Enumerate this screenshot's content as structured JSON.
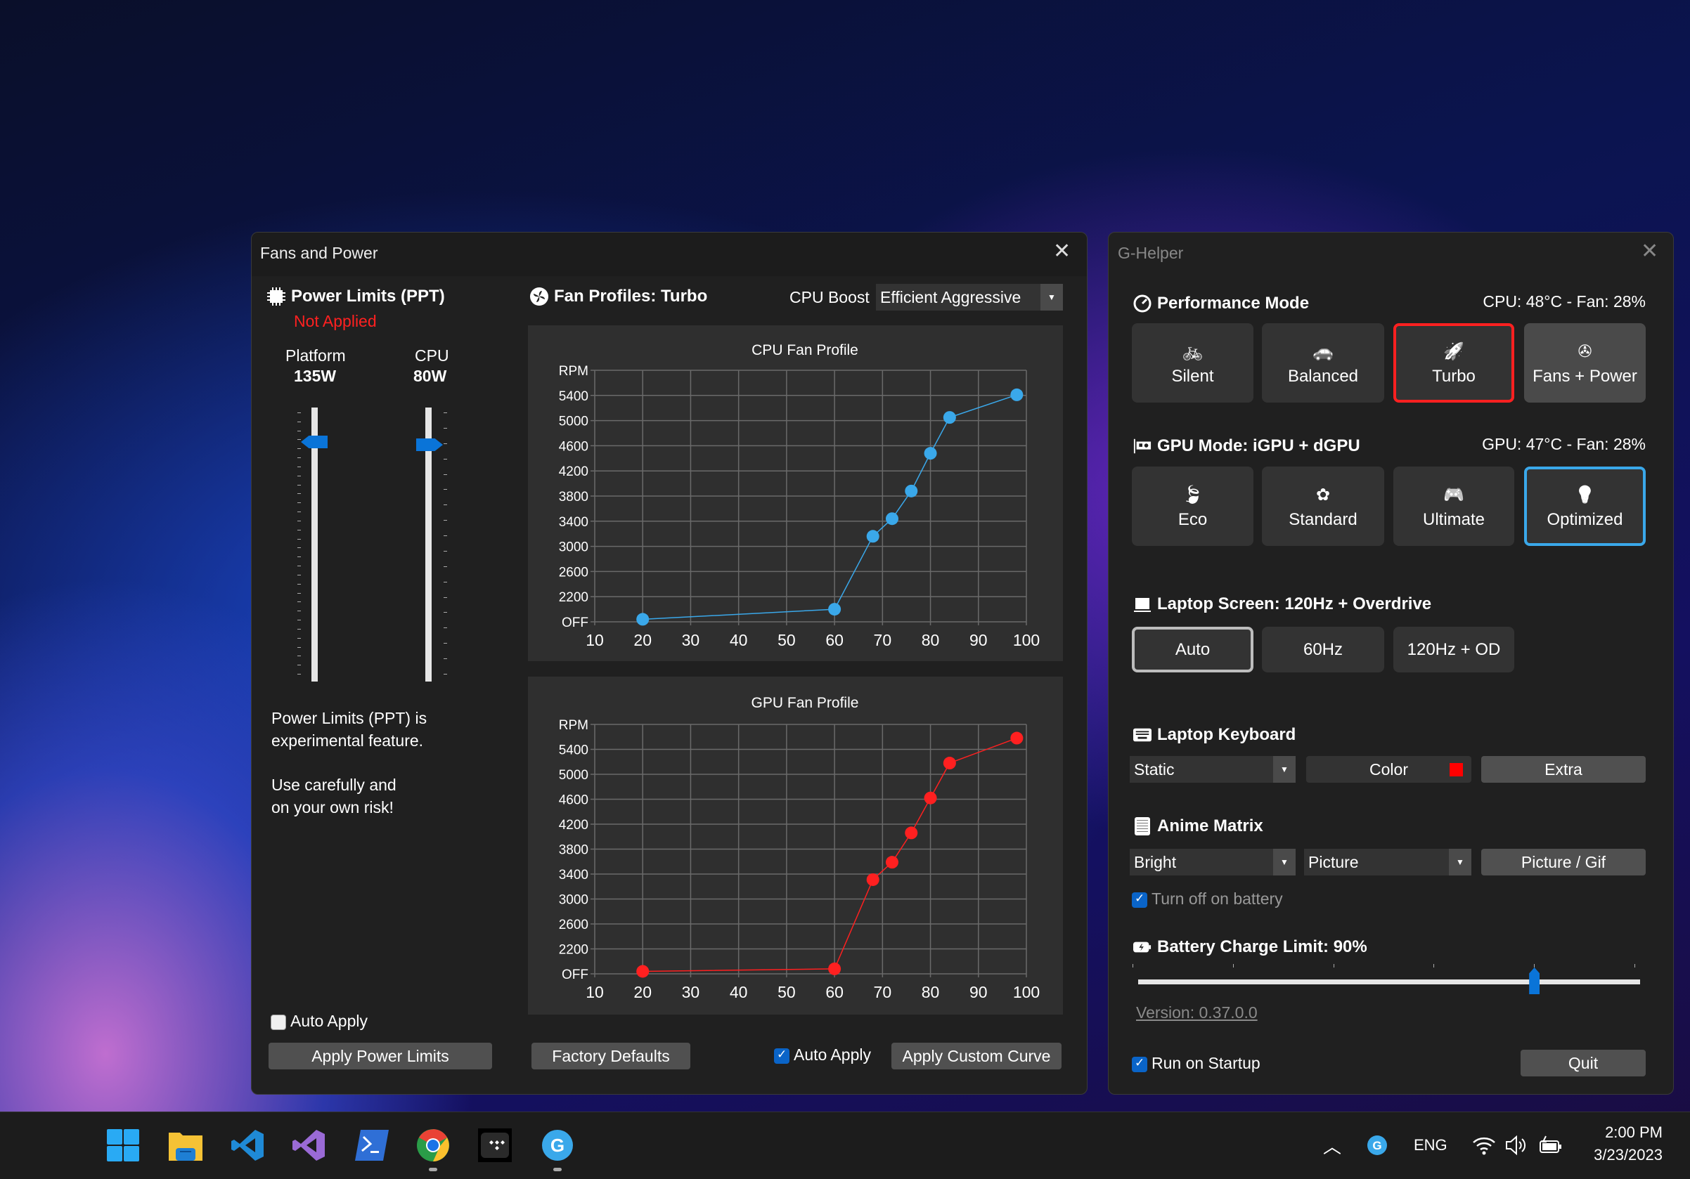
{
  "fans_window": {
    "title": "Fans and Power",
    "power_limits": {
      "title": "Power Limits (PPT)",
      "status": "Not Applied",
      "platform_label": "Platform",
      "platform_value": "135W",
      "cpu_label": "CPU",
      "cpu_value": "80W",
      "note_line1": "Power Limits (PPT) is",
      "note_line2": "experimental feature.",
      "note_line3": "Use carefully and",
      "note_line4": "on your own risk!",
      "auto_apply_label": "Auto Apply",
      "auto_apply_checked": false,
      "apply_button": "Apply Power Limits"
    },
    "fan_profiles": {
      "title": "Fan Profiles: Turbo",
      "cpu_boost_label": "CPU Boost",
      "cpu_boost_value": "Efficient Aggressive",
      "factory_defaults": "Factory Defaults",
      "auto_apply_label": "Auto Apply",
      "auto_apply_checked": true,
      "apply_curve": "Apply Custom Curve"
    }
  },
  "chart_data": [
    {
      "type": "line",
      "title": "CPU Fan Profile",
      "color": "#3aa8ea",
      "x": [
        20,
        60,
        68,
        72,
        76,
        80,
        84,
        98
      ],
      "y": [
        1840,
        2000,
        3160,
        3440,
        3880,
        4480,
        5050,
        5410
      ],
      "xlim": [
        10,
        100
      ],
      "ylim": [
        1800,
        5800
      ],
      "x_ticks": [
        "10",
        "20",
        "30",
        "40",
        "50",
        "60",
        "70",
        "80",
        "90",
        "100"
      ],
      "y_ticks": [
        "OFF",
        "2200",
        "2600",
        "3000",
        "3400",
        "3800",
        "4200",
        "4600",
        "5000",
        "5400",
        "RPM"
      ],
      "grid": true
    },
    {
      "type": "line",
      "title": "GPU Fan Profile",
      "color": "#ff2020",
      "x": [
        20,
        60,
        68,
        72,
        76,
        80,
        84,
        98
      ],
      "y": [
        1840,
        1880,
        3310,
        3590,
        4060,
        4620,
        5180,
        5580
      ],
      "xlim": [
        10,
        100
      ],
      "ylim": [
        1800,
        5800
      ],
      "x_ticks": [
        "10",
        "20",
        "30",
        "40",
        "50",
        "60",
        "70",
        "80",
        "90",
        "100"
      ],
      "y_ticks": [
        "OFF",
        "2200",
        "2600",
        "3000",
        "3400",
        "3800",
        "4200",
        "4600",
        "5000",
        "5400",
        "RPM"
      ],
      "grid": true
    }
  ],
  "ghelper": {
    "title": "G-Helper",
    "performance": {
      "title": "Performance Mode",
      "status": "CPU: 48°C -  Fan: 28%",
      "modes": [
        {
          "label": "Silent",
          "icon": "bicycle-icon"
        },
        {
          "label": "Balanced",
          "icon": "car-icon"
        },
        {
          "label": "Turbo",
          "icon": "rocket-icon",
          "selected": true
        },
        {
          "label": "Fans + Power",
          "icon": "fan-icon"
        }
      ],
      "selected_color": "#ff2020"
    },
    "gpu": {
      "title": "GPU Mode: iGPU + dGPU",
      "status": "GPU: 47°C -  Fan: 28%",
      "modes": [
        {
          "label": "Eco",
          "icon": "leaf-icon"
        },
        {
          "label": "Standard",
          "icon": "flower-icon"
        },
        {
          "label": "Ultimate",
          "icon": "gamepad-icon"
        },
        {
          "label": "Optimized",
          "icon": "lightbulb-gear-icon",
          "selected": true
        }
      ],
      "selected_color": "#3aa8ea"
    },
    "screen": {
      "title": "Laptop Screen: 120Hz + Overdrive",
      "options": [
        "Auto",
        "60Hz",
        "120Hz + OD"
      ],
      "selected": "Auto"
    },
    "keyboard": {
      "title": "Laptop Keyboard",
      "mode_value": "Static",
      "color_label": "Color",
      "color_swatch": "#ff0000",
      "extra_label": "Extra"
    },
    "anime": {
      "title": "Anime Matrix",
      "brightness_value": "Bright",
      "mode_value": "Picture",
      "picture_button": "Picture / Gif",
      "battery_off_label": "Turn off on battery",
      "battery_off_checked": true
    },
    "battery": {
      "title": "Battery Charge Limit: 90%",
      "value": 90,
      "min": 50,
      "max": 100
    },
    "version": "Version: 0.37.0.0",
    "startup_label": "Run on Startup",
    "startup_checked": true,
    "quit": "Quit"
  },
  "taskbar": {
    "apps": [
      "start-icon",
      "file-explorer-icon",
      "vscode-icon",
      "visual-studio-icon",
      "powershell-icon",
      "chrome-icon",
      "tidal-icon",
      "g-helper-icon"
    ],
    "tray": {
      "language": "ENG",
      "time": "2:00 PM",
      "date": "3/23/2023"
    }
  }
}
